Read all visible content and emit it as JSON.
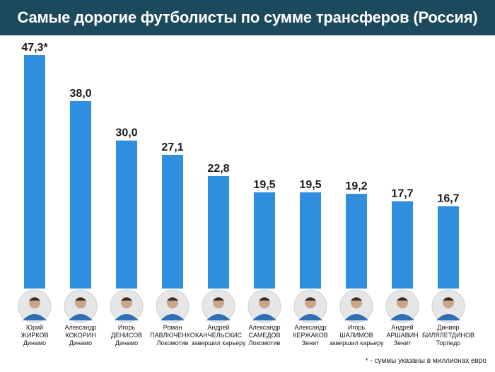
{
  "title": "Самые дорогие футболисты по сумме трансферов (Россия)",
  "footnote": "* - суммы указаны в миллионах евро",
  "colors": {
    "title_bg": "#1c4a5c",
    "bar": "#2f8fde",
    "avatar_bg": "#e6e6e6"
  },
  "chart_data": {
    "type": "bar",
    "title": "Самые дорогие футболисты по сумме трансферов (Россия)",
    "value_labels": [
      "47,3*",
      "38,0",
      "30,0",
      "27,1",
      "22,8",
      "19,5",
      "19,5",
      "19,2",
      "17,7",
      "16,7"
    ],
    "values": [
      47.3,
      38.0,
      30.0,
      27.1,
      22.8,
      19.5,
      19.5,
      19.2,
      17.7,
      16.7
    ],
    "ylim": [
      0,
      50
    ],
    "grid": false,
    "categories": [
      {
        "first": "Юрий",
        "last": "ЖИРКОВ",
        "club": "Динамо",
        "photo": "player-photo-icon"
      },
      {
        "first": "Александр",
        "last": "КОКОРИН",
        "club": "Динамо",
        "photo": "player-photo-icon"
      },
      {
        "first": "Игорь",
        "last": "ДЕНИСОВ",
        "club": "Динамо",
        "photo": "player-photo-icon"
      },
      {
        "first": "Роман",
        "last": "ПАВЛЮЧЕНКО",
        "club": "Локомотив",
        "photo": "player-photo-icon"
      },
      {
        "first": "Андрей",
        "last": "КАНЧЕЛЬСКИС",
        "club": "завершил карьеру",
        "photo": "player-photo-icon"
      },
      {
        "first": "Александр",
        "last": "САМЕДОВ",
        "club": "Локомотив",
        "photo": "player-photo-icon"
      },
      {
        "first": "Александр",
        "last": "КЕРЖАКОВ",
        "club": "Зенит",
        "photo": "player-photo-icon"
      },
      {
        "first": "Игорь",
        "last": "ШАЛИМОВ",
        "club": "завершил карьеру",
        "photo": "player-photo-icon"
      },
      {
        "first": "Андрей",
        "last": "АРШАВИН",
        "club": "Зенит",
        "photo": "player-photo-icon"
      },
      {
        "first": "Динияр",
        "last": "БИЛЯЛЕТДИНОВ",
        "club": "Торпедо",
        "photo": "player-photo-icon"
      }
    ]
  }
}
